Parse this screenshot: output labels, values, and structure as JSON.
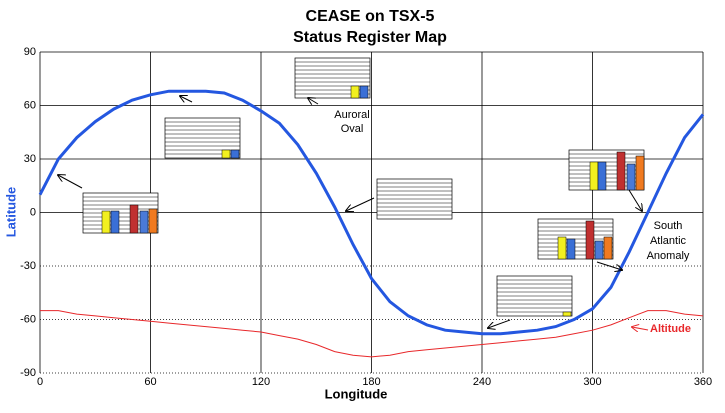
{
  "chart_data": {
    "type": "line",
    "title": "CEASE on TSX-5",
    "subtitle": "Status Register Map",
    "x_label": "Longitude",
    "y_label": "Latitude",
    "x": [
      0,
      10,
      20,
      30,
      40,
      50,
      60,
      70,
      80,
      90,
      100,
      110,
      120,
      130,
      140,
      150,
      160,
      170,
      180,
      190,
      200,
      210,
      220,
      230,
      240,
      250,
      260,
      270,
      280,
      290,
      300,
      310,
      320,
      330,
      340,
      350,
      360
    ],
    "series": [
      {
        "color": "#2457e0",
        "values": [
          10,
          30,
          42,
          51,
          58,
          63,
          66,
          68,
          68,
          68,
          67,
          63,
          57,
          50,
          38,
          22,
          3,
          -18,
          -37,
          -50,
          -58,
          -63,
          -66,
          -67,
          -68,
          -68,
          -67,
          -66,
          -64,
          -60,
          -54,
          -42,
          -22,
          0,
          22,
          42,
          55
        ]
      },
      {
        "name": "Altitude",
        "color": "#e8282b",
        "values": [
          -55,
          -55,
          -57,
          -58,
          -59,
          -60,
          -61,
          -62,
          -63,
          -64,
          -65,
          -66,
          -67,
          -69,
          -71,
          -74,
          -78,
          -80,
          -81,
          -80,
          -78,
          -77,
          -76,
          -75,
          -74,
          -73,
          -72,
          -71,
          -70,
          -68,
          -66,
          -63,
          -59,
          -55,
          -55,
          -57,
          -58
        ]
      }
    ],
    "xlim": [
      0,
      360
    ],
    "xticks": [
      0,
      60,
      120,
      180,
      240,
      300,
      360
    ],
    "ylim": [
      -90,
      90
    ],
    "yticks": [
      -90,
      -60,
      -30,
      0,
      30,
      60,
      90
    ],
    "grid": true,
    "annotations": [
      [
        "Auroral",
        "Oval"
      ],
      [
        "South",
        "Atlantic",
        "Anomaly"
      ]
    ]
  }
}
